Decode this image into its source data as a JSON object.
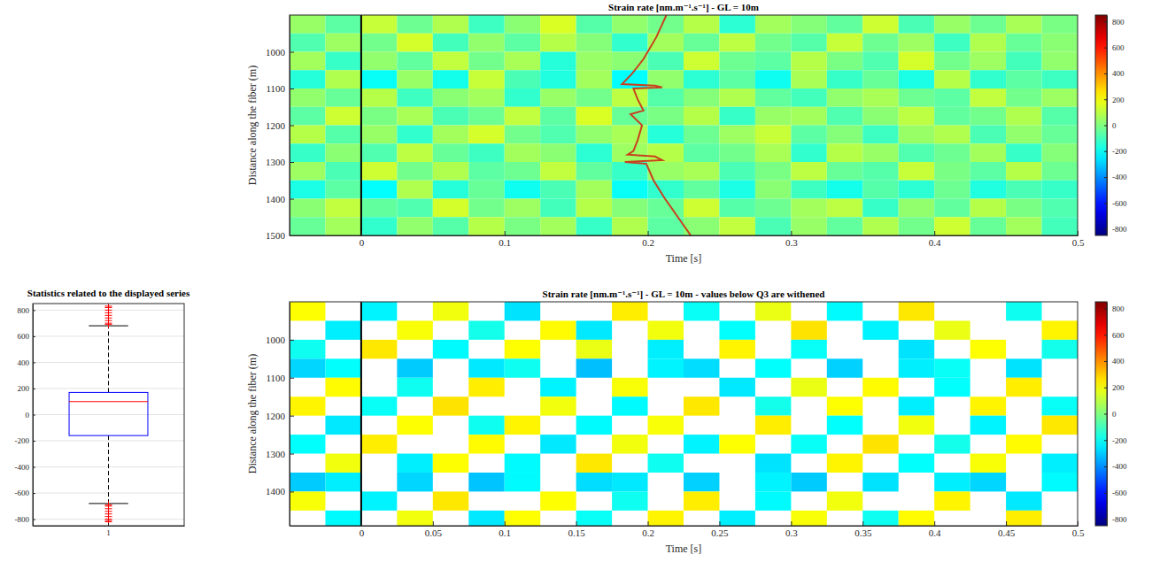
{
  "chart_data": [
    {
      "type": "box",
      "title": "Statistics related to the displayed series",
      "categories": [
        "1"
      ],
      "ylim": [
        -850,
        850
      ],
      "yticks": [
        -800,
        -600,
        -400,
        -200,
        0,
        200,
        400,
        600,
        800
      ],
      "grid": true,
      "color": "#0000ff",
      "marker": "plus",
      "q1": -160,
      "median": 100,
      "q3": 170,
      "whisker_low": -680,
      "whisker_high": 680,
      "outliers": [
        690,
        700,
        720,
        740,
        760,
        780,
        800,
        820,
        830,
        -690,
        -700,
        -720,
        -740,
        -760,
        -780,
        -800,
        -810,
        -820
      ]
    },
    {
      "type": "heatmap",
      "title": "Strain rate [nm.m⁻¹.s⁻¹] - GL = 10m",
      "x_label": "Time [s]",
      "y_label": "Distance along the fiber (m)",
      "xlim": [
        -0.05,
        0.5
      ],
      "xticks": [
        0,
        0.1,
        0.2,
        0.3,
        0.4,
        0.5
      ],
      "ylim": [
        900,
        1500
      ],
      "yticks": [
        1000,
        1100,
        1200,
        1300,
        1400,
        1500
      ],
      "color_range": [
        -850,
        850
      ],
      "color_ticks": [
        -800,
        -600,
        -400,
        -200,
        0,
        200,
        400,
        600,
        800
      ],
      "event_time": 0,
      "x_bins": [
        -0.05,
        -0.025,
        0,
        0.025,
        0.05,
        0.075,
        0.1,
        0.125,
        0.15,
        0.175,
        0.2,
        0.225,
        0.25,
        0.275,
        0.3,
        0.325,
        0.35,
        0.375,
        0.4,
        0.425,
        0.45,
        0.475,
        0.5
      ],
      "y_bins": [
        900,
        950,
        1000,
        1050,
        1100,
        1150,
        1200,
        1250,
        1300,
        1350,
        1400,
        1450,
        1500
      ],
      "cells": [
        [
          40,
          -60,
          120,
          -30,
          80,
          -110,
          20,
          150,
          -70,
          30,
          -20,
          90,
          -140,
          60,
          10,
          -50,
          130,
          -90,
          40,
          -30,
          70,
          -10
        ],
        [
          -80,
          50,
          -20,
          140,
          -100,
          30,
          -60,
          90,
          10,
          -130,
          60,
          -40,
          100,
          -20,
          -70,
          120,
          -30,
          50,
          -110,
          80,
          -40,
          20
        ],
        [
          60,
          -120,
          30,
          -50,
          110,
          -20,
          70,
          -150,
          40,
          20,
          -90,
          130,
          -30,
          -60,
          90,
          -10,
          -80,
          140,
          -20,
          50,
          -100,
          30
        ],
        [
          -150,
          80,
          -200,
          40,
          -180,
          120,
          -90,
          -160,
          60,
          -210,
          30,
          -140,
          -60,
          -190,
          70,
          -120,
          -40,
          -170,
          90,
          -130,
          -60,
          -110
        ],
        [
          30,
          -40,
          90,
          -110,
          20,
          60,
          -130,
          40,
          -20,
          100,
          -70,
          10,
          80,
          -50,
          -100,
          30,
          70,
          -30,
          -60,
          110,
          -20,
          50
        ],
        [
          -60,
          130,
          -10,
          70,
          -90,
          -30,
          110,
          -60,
          150,
          -40,
          -10,
          90,
          -120,
          40,
          60,
          -80,
          20,
          100,
          -50,
          -20,
          80,
          -70
        ],
        [
          90,
          -70,
          40,
          -130,
          60,
          140,
          -20,
          -80,
          30,
          70,
          -150,
          -30,
          50,
          120,
          -60,
          10,
          -110,
          40,
          80,
          -90,
          30,
          -40
        ],
        [
          -120,
          20,
          -80,
          100,
          -40,
          -110,
          60,
          20,
          -140,
          50,
          90,
          -60,
          -20,
          70,
          -130,
          90,
          40,
          -80,
          -30,
          60,
          -120,
          10
        ],
        [
          50,
          -90,
          130,
          -20,
          80,
          -60,
          -30,
          110,
          -50,
          -120,
          40,
          70,
          -90,
          -10,
          100,
          -40,
          -70,
          120,
          -10,
          -60,
          90,
          -30
        ],
        [
          -170,
          -60,
          -210,
          80,
          -150,
          -40,
          -190,
          -90,
          60,
          -200,
          -130,
          -50,
          -170,
          20,
          -110,
          -180,
          -70,
          -140,
          -30,
          -160,
          -90,
          -120
        ],
        [
          20,
          110,
          -50,
          -80,
          140,
          -20,
          50,
          -100,
          90,
          10,
          -40,
          130,
          -70,
          -30,
          60,
          100,
          -120,
          30,
          -50,
          90,
          -10,
          -80
        ],
        [
          -40,
          60,
          -130,
          30,
          -70,
          90,
          -10,
          60,
          -120,
          80,
          -60,
          20,
          110,
          -90,
          40,
          -50,
          80,
          -20,
          130,
          -40,
          60,
          -100
        ]
      ],
      "series": [
        {
          "type": "line",
          "color": "#c8401f",
          "x": [
            0.213,
            0.206,
            0.197,
            0.189,
            0.182,
            0.205,
            0.21,
            0.19,
            0.193,
            0.197,
            0.188,
            0.196,
            0.193,
            0.19,
            0.186,
            0.205,
            0.21,
            0.184,
            0.199,
            0.204,
            0.212,
            0.221,
            0.23
          ],
          "values": [
            900,
            960,
            1020,
            1060,
            1088,
            1092,
            1097,
            1100,
            1130,
            1160,
            1170,
            1200,
            1240,
            1270,
            1280,
            1285,
            1295,
            1300,
            1305,
            1350,
            1400,
            1450,
            1500
          ]
        }
      ]
    },
    {
      "type": "heatmap",
      "title": "Strain rate [nm.m⁻¹.s⁻¹] - GL = 10m - values below Q3 are withened",
      "x_label": "Time [s]",
      "y_label": "Distance along the fiber (m)",
      "xlim": [
        -0.05,
        0.5
      ],
      "xticks": [
        0,
        0.05,
        0.1,
        0.15,
        0.2,
        0.25,
        0.3,
        0.35,
        0.4,
        0.45,
        0.5
      ],
      "ylim": [
        900,
        1490
      ],
      "yticks": [
        1000,
        1100,
        1200,
        1300,
        1400
      ],
      "color_range": [
        -850,
        850
      ],
      "color_ticks": [
        -800,
        -600,
        -400,
        -200,
        0,
        200,
        400,
        600,
        800
      ],
      "event_time": 0,
      "x_bins": [
        -0.05,
        -0.025,
        0,
        0.025,
        0.05,
        0.075,
        0.1,
        0.125,
        0.15,
        0.175,
        0.2,
        0.225,
        0.25,
        0.275,
        0.3,
        0.325,
        0.35,
        0.375,
        0.4,
        0.425,
        0.45,
        0.475,
        0.5
      ],
      "y_bins": [
        900,
        950,
        1000,
        1050,
        1100,
        1150,
        1200,
        1250,
        1300,
        1350,
        1400,
        1450,
        1500
      ],
      "cells": [
        [
          210,
          null,
          -230,
          null,
          190,
          null,
          -260,
          null,
          null,
          240,
          null,
          -200,
          null,
          180,
          null,
          -220,
          null,
          250,
          null,
          null,
          -190,
          null
        ],
        [
          null,
          -240,
          null,
          200,
          null,
          -180,
          null,
          220,
          -250,
          null,
          190,
          null,
          -210,
          null,
          260,
          null,
          -230,
          null,
          180,
          null,
          null,
          230
        ],
        [
          -190,
          null,
          250,
          null,
          -220,
          null,
          210,
          null,
          180,
          null,
          -240,
          null,
          230,
          null,
          -200,
          null,
          null,
          -260,
          null,
          210,
          null,
          -180
        ],
        [
          -280,
          -210,
          null,
          -300,
          null,
          -250,
          -190,
          null,
          -320,
          null,
          -230,
          -270,
          null,
          -210,
          null,
          -290,
          null,
          -240,
          -200,
          null,
          -260,
          null
        ],
        [
          null,
          220,
          null,
          -190,
          null,
          240,
          null,
          -230,
          null,
          200,
          null,
          null,
          -250,
          null,
          180,
          null,
          220,
          null,
          -210,
          null,
          240,
          null
        ],
        [
          230,
          null,
          -200,
          null,
          260,
          null,
          null,
          190,
          null,
          -220,
          null,
          250,
          null,
          -180,
          null,
          210,
          null,
          -240,
          null,
          230,
          null,
          -200
        ],
        [
          null,
          -250,
          null,
          210,
          null,
          -190,
          230,
          null,
          -220,
          null,
          200,
          null,
          null,
          240,
          null,
          -210,
          null,
          190,
          null,
          -230,
          null,
          250
        ],
        [
          -210,
          null,
          240,
          null,
          null,
          220,
          null,
          -250,
          null,
          190,
          null,
          -230,
          210,
          null,
          -200,
          null,
          260,
          null,
          -180,
          null,
          220,
          null
        ],
        [
          null,
          190,
          null,
          -240,
          210,
          null,
          -220,
          null,
          250,
          null,
          -190,
          null,
          null,
          -260,
          null,
          230,
          null,
          -210,
          null,
          200,
          null,
          -240
        ],
        [
          -300,
          -240,
          null,
          -280,
          null,
          -310,
          -220,
          null,
          -270,
          -250,
          null,
          -290,
          null,
          -230,
          -300,
          null,
          -260,
          null,
          -240,
          -280,
          null,
          -220
        ],
        [
          200,
          null,
          -230,
          null,
          250,
          null,
          null,
          210,
          null,
          -190,
          null,
          240,
          null,
          -220,
          null,
          190,
          null,
          null,
          230,
          null,
          -250,
          null
        ],
        [
          null,
          -220,
          null,
          190,
          null,
          -250,
          210,
          null,
          -200,
          null,
          230,
          null,
          -240,
          null,
          200,
          null,
          -190,
          220,
          null,
          null,
          240,
          null
        ]
      ]
    }
  ]
}
